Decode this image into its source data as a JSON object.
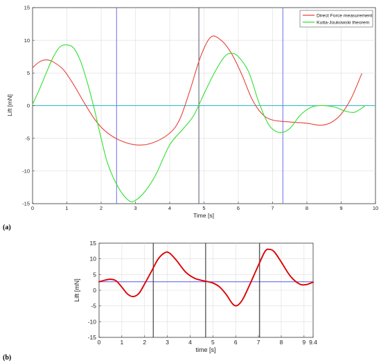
{
  "chart_data": [
    {
      "type": "line",
      "panel_label": "(a)",
      "xlabel": "Time [s]",
      "ylabel": "Lift [mN]",
      "xlim": [
        0,
        10
      ],
      "ylim": [
        -15,
        15
      ],
      "xticks": [
        "0",
        "1",
        "2",
        "3",
        "4",
        "5",
        "6",
        "7",
        "8",
        "9",
        "10"
      ],
      "yticks": [
        "-15",
        "-10",
        "-5",
        "0",
        "5",
        "10",
        "15"
      ],
      "grid": true,
      "legend_position": "top-right",
      "colors": {
        "direct": "#e8403a",
        "kutta": "#2ee02e",
        "zero_line": "#2bb9c8",
        "vline_blue": "#6a6ee6",
        "vline_dark": "#555566"
      },
      "series": [
        {
          "name": "Direct Force measurement",
          "color": "#e8403a",
          "points": [
            [
              0,
              5.8
            ],
            [
              0.2,
              6.7
            ],
            [
              0.4,
              7.0
            ],
            [
              0.6,
              6.7
            ],
            [
              0.9,
              5.5
            ],
            [
              1.2,
              3.2
            ],
            [
              1.5,
              0.5
            ],
            [
              1.8,
              -2.0
            ],
            [
              2.1,
              -3.8
            ],
            [
              2.5,
              -5.2
            ],
            [
              3.0,
              -6.0
            ],
            [
              3.5,
              -5.7
            ],
            [
              4.0,
              -4.2
            ],
            [
              4.3,
              -2.0
            ],
            [
              4.6,
              2.5
            ],
            [
              4.9,
              7.5
            ],
            [
              5.2,
              10.5
            ],
            [
              5.5,
              10.0
            ],
            [
              5.8,
              8.0
            ],
            [
              6.1,
              4.8
            ],
            [
              6.4,
              1.0
            ],
            [
              6.7,
              -1.3
            ],
            [
              7.0,
              -2.2
            ],
            [
              7.5,
              -2.5
            ],
            [
              8.0,
              -2.7
            ],
            [
              8.4,
              -3.0
            ],
            [
              8.7,
              -2.6
            ],
            [
              9.0,
              -1.3
            ],
            [
              9.3,
              1.2
            ],
            [
              9.6,
              4.9
            ]
          ]
        },
        {
          "name": "Kutta-Joukowski theorem",
          "color": "#2ee02e",
          "points": [
            [
              0,
              0.2
            ],
            [
              0.2,
              2.5
            ],
            [
              0.4,
              5.0
            ],
            [
              0.6,
              7.4
            ],
            [
              0.8,
              9.0
            ],
            [
              1.0,
              9.3
            ],
            [
              1.2,
              8.8
            ],
            [
              1.4,
              6.8
            ],
            [
              1.6,
              3.5
            ],
            [
              1.8,
              -0.5
            ],
            [
              2.0,
              -5.0
            ],
            [
              2.2,
              -9.0
            ],
            [
              2.5,
              -12.5
            ],
            [
              2.8,
              -14.5
            ],
            [
              3.0,
              -14.5
            ],
            [
              3.3,
              -13.0
            ],
            [
              3.6,
              -10.5
            ],
            [
              4.0,
              -6.0
            ],
            [
              4.4,
              -3.5
            ],
            [
              4.7,
              -1.5
            ],
            [
              5.0,
              1.8
            ],
            [
              5.3,
              5.0
            ],
            [
              5.6,
              7.5
            ],
            [
              5.8,
              8.0
            ],
            [
              6.0,
              7.5
            ],
            [
              6.3,
              5.2
            ],
            [
              6.6,
              0.5
            ],
            [
              6.9,
              -3.0
            ],
            [
              7.2,
              -4.1
            ],
            [
              7.5,
              -3.5
            ],
            [
              7.8,
              -1.5
            ],
            [
              8.1,
              -0.3
            ],
            [
              8.4,
              0.0
            ],
            [
              8.8,
              -0.2
            ],
            [
              9.1,
              -0.8
            ],
            [
              9.4,
              -1.0
            ],
            [
              9.7,
              0.0
            ]
          ]
        }
      ],
      "reference_lines": {
        "horizontal_y": 0,
        "vertical_x": [
          2.45,
          4.85,
          7.3
        ]
      }
    },
    {
      "type": "line",
      "panel_label": "(b)",
      "xlabel": "time [s]",
      "ylabel": "Lift [mN]",
      "xlim": [
        0,
        9.4
      ],
      "ylim": [
        -15,
        15
      ],
      "xticks": [
        "0",
        "1",
        "2",
        "3",
        "4",
        "5",
        "6",
        "7",
        "8",
        "9",
        "9.4"
      ],
      "yticks": [
        "-15",
        "-10",
        "-5",
        "0",
        "5",
        "10",
        "15"
      ],
      "grid": true,
      "colors": {
        "curve": "#dd0000",
        "mean_line": "#5555ee",
        "vline": "#333333"
      },
      "series": [
        {
          "color": "#dd0000",
          "points": [
            [
              0,
              2.7
            ],
            [
              0.25,
              3.2
            ],
            [
              0.5,
              3.5
            ],
            [
              0.75,
              3.0
            ],
            [
              1.0,
              1.0
            ],
            [
              1.25,
              -1.2
            ],
            [
              1.5,
              -2.0
            ],
            [
              1.75,
              -1.0
            ],
            [
              2.0,
              2.0
            ],
            [
              2.3,
              6.0
            ],
            [
              2.6,
              10.0
            ],
            [
              2.9,
              12.0
            ],
            [
              3.1,
              11.8
            ],
            [
              3.4,
              9.5
            ],
            [
              3.8,
              5.8
            ],
            [
              4.2,
              3.8
            ],
            [
              4.6,
              3.0
            ],
            [
              5.0,
              2.3
            ],
            [
              5.3,
              1.0
            ],
            [
              5.6,
              -1.5
            ],
            [
              5.85,
              -4.2
            ],
            [
              6.05,
              -4.9
            ],
            [
              6.3,
              -3.0
            ],
            [
              6.6,
              1.5
            ],
            [
              7.0,
              8.0
            ],
            [
              7.3,
              12.5
            ],
            [
              7.5,
              13.0
            ],
            [
              7.7,
              12.2
            ],
            [
              8.0,
              9.0
            ],
            [
              8.4,
              4.5
            ],
            [
              8.8,
              2.0
            ],
            [
              9.1,
              1.8
            ],
            [
              9.4,
              2.6
            ]
          ]
        }
      ],
      "reference_lines": {
        "horizontal_y": 2.7,
        "vertical_x": [
          2.38,
          4.68,
          7.05
        ]
      }
    }
  ]
}
